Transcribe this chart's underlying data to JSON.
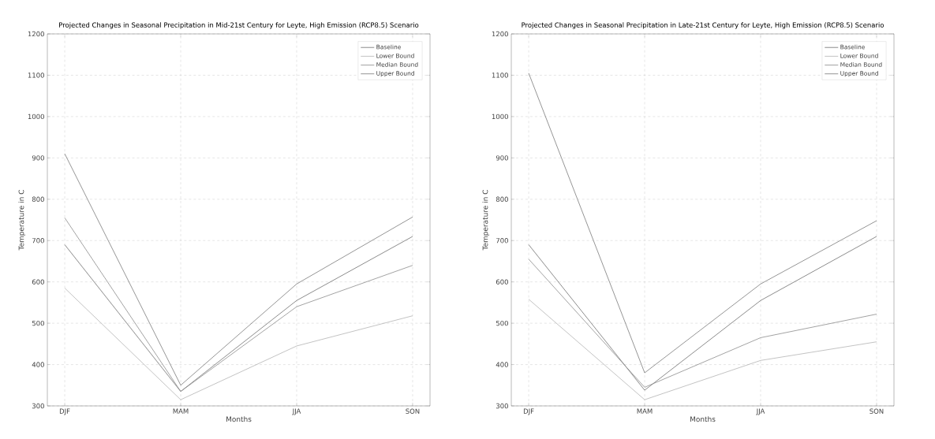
{
  "chart_data": [
    {
      "type": "line",
      "title": "Projected Changes in Seasonal Precipitation in Mid-21st Century for Leyte, High Emission (RCP8.5) Scenario",
      "xlabel": "Months",
      "ylabel": "Temperature in C",
      "categories": [
        "DJF",
        "MAM",
        "JJA",
        "SON"
      ],
      "ylim": [
        300,
        1200
      ],
      "yticks": [
        300,
        400,
        500,
        600,
        700,
        800,
        900,
        1000,
        1100,
        1200
      ],
      "grid": true,
      "legend": "top right",
      "marker": "none",
      "line_style": "solid",
      "series": [
        {
          "name": "Baseline",
          "color": "#6e6e6e",
          "values": [
            690,
            335,
            555,
            710
          ]
        },
        {
          "name": "Lower Bound",
          "color": "#b4b4b4",
          "values": [
            585,
            315,
            445,
            518
          ]
        },
        {
          "name": "Median Bound",
          "color": "#8c8c8c",
          "values": [
            755,
            335,
            540,
            640
          ]
        },
        {
          "name": "Upper Bound",
          "color": "#7a7a7a",
          "values": [
            910,
            350,
            595,
            757
          ]
        }
      ]
    },
    {
      "type": "line",
      "title": "Projected Changes in Seasonal Precipitation in Late-21st Century for Leyte, High Emission (RCP8.5) Scenario",
      "xlabel": "Months",
      "ylabel": "Temperature in C",
      "categories": [
        "DJF",
        "MAM",
        "JJA",
        "SON"
      ],
      "ylim": [
        300,
        1200
      ],
      "yticks": [
        300,
        400,
        500,
        600,
        700,
        800,
        900,
        1000,
        1100,
        1200
      ],
      "grid": true,
      "legend": "top right",
      "marker": "none",
      "line_style": "solid",
      "series": [
        {
          "name": "Baseline",
          "color": "#6e6e6e",
          "values": [
            690,
            338,
            555,
            710
          ]
        },
        {
          "name": "Lower Bound",
          "color": "#b4b4b4",
          "values": [
            558,
            315,
            410,
            455
          ]
        },
        {
          "name": "Median Bound",
          "color": "#8c8c8c",
          "values": [
            655,
            345,
            465,
            522
          ]
        },
        {
          "name": "Upper Bound",
          "color": "#7a7a7a",
          "values": [
            1105,
            380,
            595,
            748
          ]
        }
      ]
    }
  ]
}
